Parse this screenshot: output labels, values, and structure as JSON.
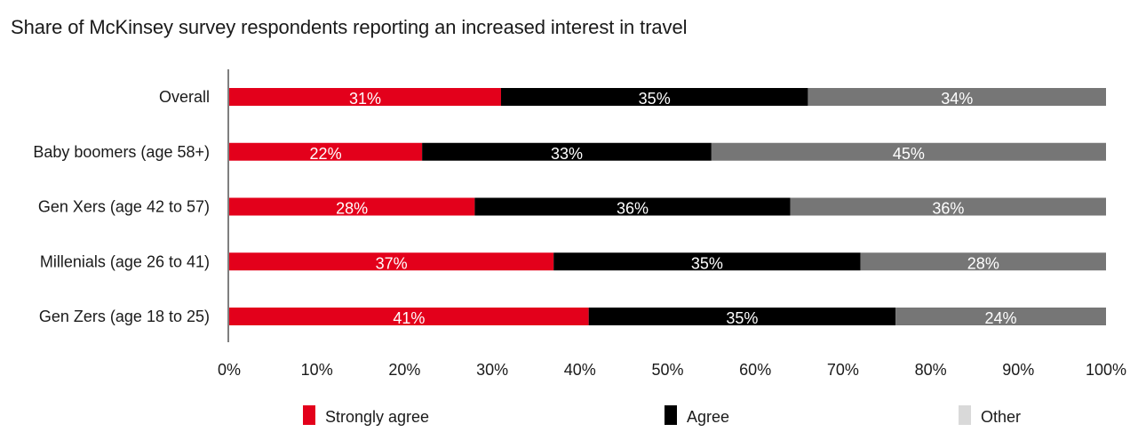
{
  "chart_data": {
    "type": "bar",
    "orientation": "horizontal",
    "stacked": true,
    "title": "Share of McKinsey survey respondents reporting an increased interest in travel",
    "categories": [
      "Overall",
      "Baby boomers (age 58+)",
      "Gen Xers (age 42 to 57)",
      "Millenials (age 26 to 41)",
      "Gen Zers (age 18 to 25)"
    ],
    "series": [
      {
        "name": "Strongly agree",
        "color": "#e3001b",
        "values": [
          31,
          22,
          28,
          37,
          41
        ],
        "labels": [
          "31%",
          "22%",
          "28%",
          "37%",
          "41%"
        ]
      },
      {
        "name": "Agree",
        "color": "#000000",
        "values": [
          35,
          33,
          36,
          35,
          35
        ],
        "labels": [
          "35%",
          "33%",
          "36%",
          "35%",
          "35%"
        ]
      },
      {
        "name": "Other",
        "color": "#767676",
        "legend_color": "#d9d9d9",
        "values": [
          34,
          45,
          36,
          28,
          24
        ],
        "labels": [
          "34%",
          "45%",
          "36%",
          "28%",
          "24%"
        ]
      }
    ],
    "xlim": [
      0,
      100
    ],
    "x_ticks": [
      "0%",
      "10%",
      "20%",
      "30%",
      "40%",
      "50%",
      "60%",
      "70%",
      "80%",
      "90%",
      "100%"
    ],
    "grid": false,
    "legend_position": "bottom"
  }
}
